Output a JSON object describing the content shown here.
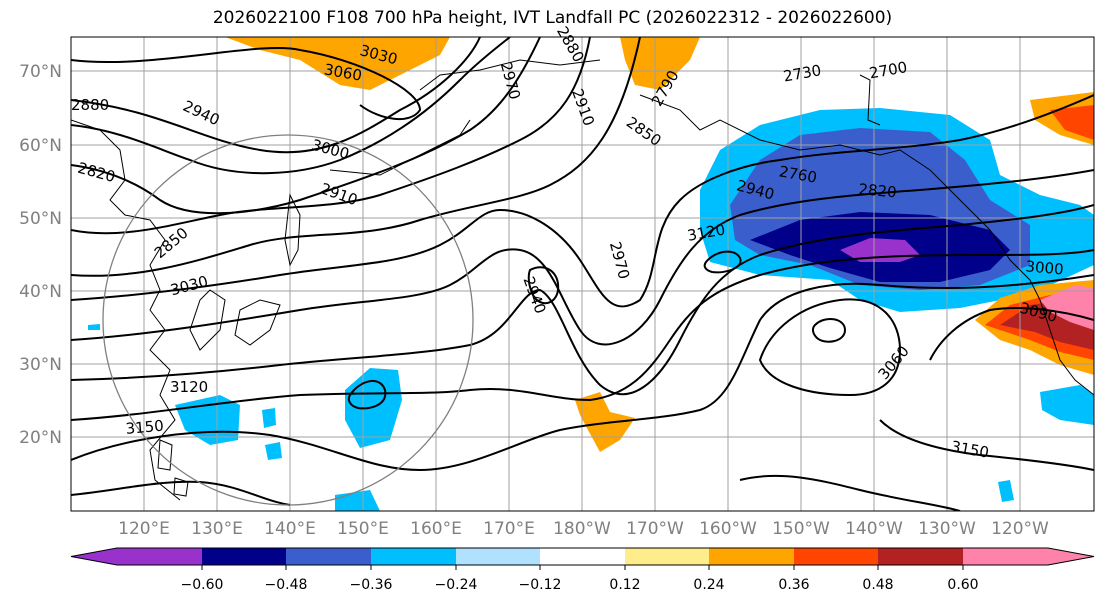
{
  "title": "2026022100 F108 700 hPa height, IVT Landfall PC (2026022312 - 2026022600)",
  "map": {
    "lat_labels": [
      "70°N",
      "60°N",
      "50°N",
      "40°N",
      "30°N",
      "20°N"
    ],
    "lon_labels": [
      "120°E",
      "130°E",
      "140°E",
      "150°E",
      "160°E",
      "170°E",
      "180°W",
      "170°W",
      "160°W",
      "150°W",
      "140°W",
      "130°W",
      "120°W"
    ],
    "contour_labels": [
      "3030",
      "3060",
      "2880",
      "2970",
      "2910",
      "2790",
      "2850",
      "2730",
      "2700",
      "2880",
      "2940",
      "3000",
      "2910",
      "2820",
      "2850",
      "3030",
      "2940",
      "2970",
      "3120",
      "2940",
      "2760",
      "2820",
      "3000",
      "3090",
      "3060",
      "3120",
      "3150",
      "3150"
    ]
  },
  "colorbar": {
    "colors": [
      "#9932cc",
      "#00008b",
      "#3a5fcd",
      "#00bfff",
      "#b0e2ff",
      "#ffffff",
      "#ffec8b",
      "#ffa500",
      "#ff4500",
      "#b22222",
      "#ff82ab"
    ],
    "tick_labels": [
      "−0.60",
      "−0.48",
      "−0.36",
      "−0.24",
      "−0.12",
      "0.12",
      "0.24",
      "0.36",
      "0.48",
      "0.60"
    ]
  }
}
